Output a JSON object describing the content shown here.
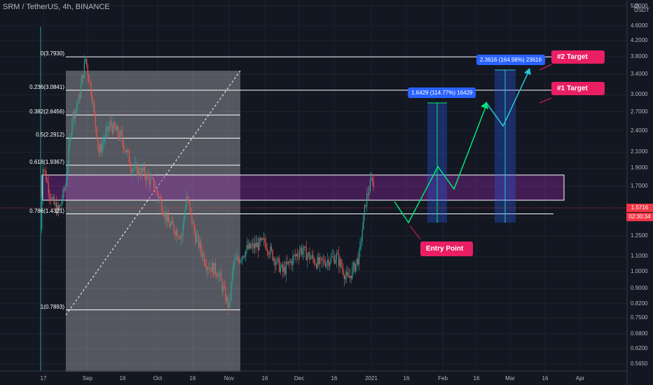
{
  "title": "SRM / TetherUS, 4h, BINANCE",
  "currency": "USDT",
  "colors": {
    "background": "#131722",
    "up": "#26a69a",
    "down": "#ef5350",
    "zone": "#9c27b0",
    "target_arrow": "#26c6da",
    "entry_arrow": "#00e676",
    "label": "#e91e63",
    "measure": "#2962ff"
  },
  "y_axis": {
    "scale": "log",
    "ticks": [
      "5.2000",
      "4.6000",
      "4.2000",
      "3.8000",
      "3.4000",
      "3.0000",
      "2.7000",
      "2.4000",
      "2.1000",
      "1.9000",
      "1.7000",
      "1.4000",
      "1.2500",
      "1.1000",
      "1.0000",
      "0.9000",
      "0.8200",
      "0.7500",
      "0.6800",
      "0.6200",
      "0.5650"
    ]
  },
  "x_axis": {
    "ticks": [
      "17",
      "Sep",
      "16",
      "Oct",
      "16",
      "Nov",
      "16",
      "Dec",
      "16",
      "2021",
      "16",
      "Feb",
      "16",
      "Mar",
      "16",
      "Apr"
    ]
  },
  "current_price": {
    "value": "1.5716",
    "countdown": "02:30:34"
  },
  "fib_levels": [
    {
      "label": "0(3.7930)",
      "value": 3.793
    },
    {
      "label": "0.236(3.0841)",
      "value": 3.0841
    },
    {
      "label": "0.382(2.6456)",
      "value": 2.6456
    },
    {
      "label": "0.5(2.2912)",
      "value": 2.2912
    },
    {
      "label": "0.618(1.9367)",
      "value": 1.9367
    },
    {
      "label": "0.786(1.4321)",
      "value": 1.4321
    },
    {
      "label": "1(0.7893)",
      "value": 0.7893
    }
  ],
  "annotations": {
    "target2": "#2 Target",
    "target1": "#1 Target",
    "entry": "Entry Point",
    "measure1": "1.6429 (114.77%) 16429",
    "measure2": "2.3616 (164.98%) 23616"
  },
  "chart_data": {
    "type": "candlestick",
    "title": "SRM / TetherUS, 4h, BINANCE",
    "y_scale": "log",
    "ylim": [
      0.54,
      5.4
    ],
    "path": [
      {
        "x": "Aug 12",
        "y": 1.3
      },
      {
        "x": "Aug 13",
        "y": 1.95
      },
      {
        "x": "Aug 17",
        "y": 1.55
      },
      {
        "x": "Aug 20",
        "y": 1.45
      },
      {
        "x": "Aug 23",
        "y": 1.7
      },
      {
        "x": "Aug 26",
        "y": 2.6
      },
      {
        "x": "Aug 29",
        "y": 2.9
      },
      {
        "x": "Sep 1",
        "y": 3.75
      },
      {
        "x": "Sep 4",
        "y": 2.95
      },
      {
        "x": "Sep 7",
        "y": 2.1
      },
      {
        "x": "Sep 12",
        "y": 2.5
      },
      {
        "x": "Sep 17",
        "y": 2.3
      },
      {
        "x": "Sep 22",
        "y": 1.9
      },
      {
        "x": "Sep 27",
        "y": 1.85
      },
      {
        "x": "Oct 2",
        "y": 1.7
      },
      {
        "x": "Oct 8",
        "y": 1.35
      },
      {
        "x": "Oct 14",
        "y": 1.25
      },
      {
        "x": "Oct 16",
        "y": 1.6
      },
      {
        "x": "Oct 20",
        "y": 1.25
      },
      {
        "x": "Oct 25",
        "y": 1.05
      },
      {
        "x": "Oct 30",
        "y": 1.0
      },
      {
        "x": "Nov 4",
        "y": 0.8
      },
      {
        "x": "Nov 6",
        "y": 1.05
      },
      {
        "x": "Nov 12",
        "y": 1.15
      },
      {
        "x": "Nov 20",
        "y": 1.2
      },
      {
        "x": "Nov 28",
        "y": 1.0
      },
      {
        "x": "Dec 6",
        "y": 1.15
      },
      {
        "x": "Dec 14",
        "y": 1.05
      },
      {
        "x": "Dec 22",
        "y": 1.1
      },
      {
        "x": "Dec 27",
        "y": 0.95
      },
      {
        "x": "Jan 1",
        "y": 1.1
      },
      {
        "x": "Jan 4",
        "y": 1.55
      },
      {
        "x": "Jan 7",
        "y": 1.8
      },
      {
        "x": "Jan 8",
        "y": 1.57
      }
    ]
  }
}
